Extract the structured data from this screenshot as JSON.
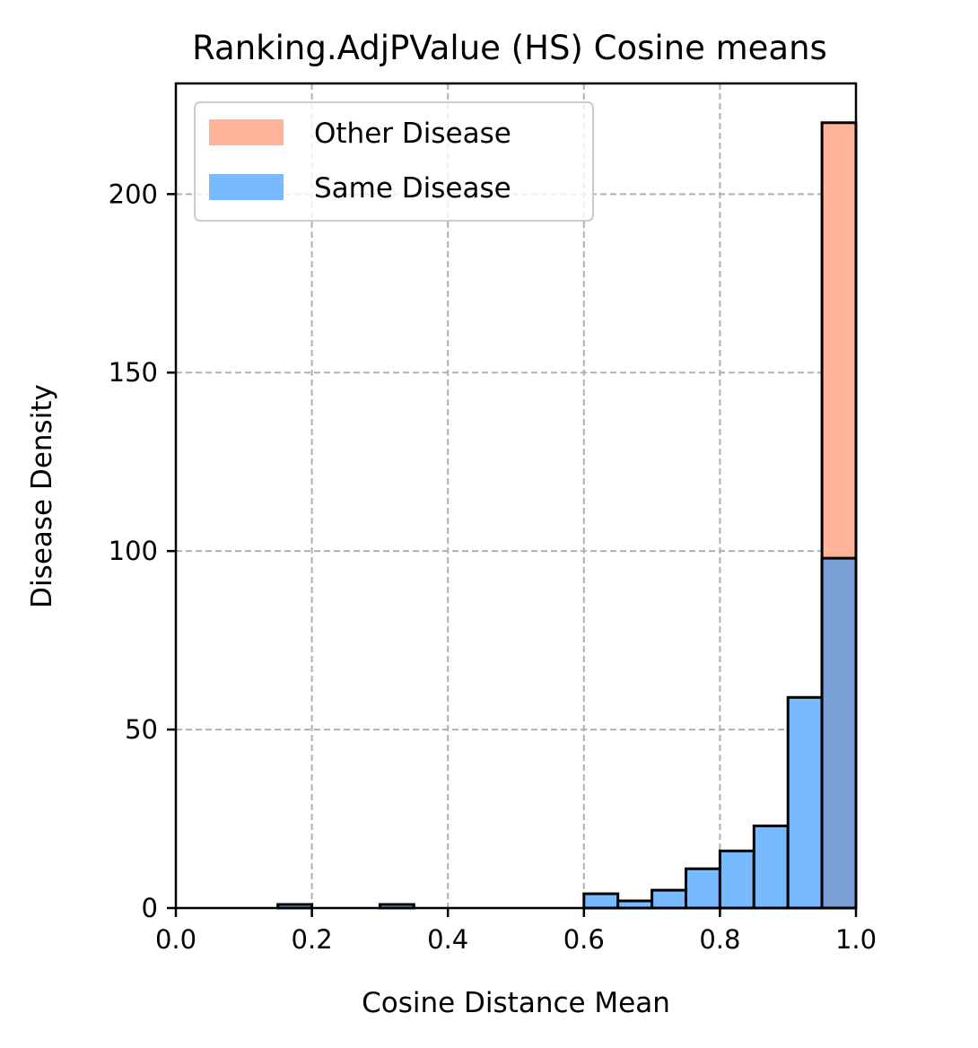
{
  "chart_data": {
    "type": "bar",
    "title": "Ranking.AdjPValue (HS) Cosine means",
    "xlabel": "Cosine Distance Mean",
    "ylabel": "Disease Density",
    "xlim": [
      0.0,
      1.0
    ],
    "ylim": [
      0,
      231
    ],
    "x_ticks": [
      0.0,
      0.2,
      0.4,
      0.6,
      0.8,
      1.0
    ],
    "x_tick_labels": [
      "0.0",
      "0.2",
      "0.4",
      "0.6",
      "0.8",
      "1.0"
    ],
    "y_ticks": [
      0,
      50,
      100,
      150,
      200
    ],
    "y_tick_labels": [
      "0",
      "50",
      "100",
      "150",
      "200"
    ],
    "grid": true,
    "legend_position": "top-left",
    "bin_edges": [
      0.0,
      0.05,
      0.1,
      0.15,
      0.2,
      0.25,
      0.3,
      0.35,
      0.4,
      0.45,
      0.5,
      0.55,
      0.6,
      0.65,
      0.7,
      0.75,
      0.8,
      0.85,
      0.9,
      0.95,
      1.0
    ],
    "series": [
      {
        "name": "Same Disease",
        "color": "#77baff",
        "values": [
          0,
          0,
          0,
          1,
          0,
          0,
          1,
          0,
          0,
          0,
          0,
          0,
          4,
          2,
          5,
          11,
          16,
          23,
          59,
          98
        ]
      },
      {
        "name": "Other Disease",
        "color": "#ffb399",
        "values": [
          0,
          0,
          0,
          0,
          0,
          0,
          0,
          0,
          0,
          0,
          0,
          0,
          0,
          0,
          0,
          0,
          0,
          0,
          0,
          220
        ]
      }
    ],
    "overlap_color": "#799fd6"
  }
}
